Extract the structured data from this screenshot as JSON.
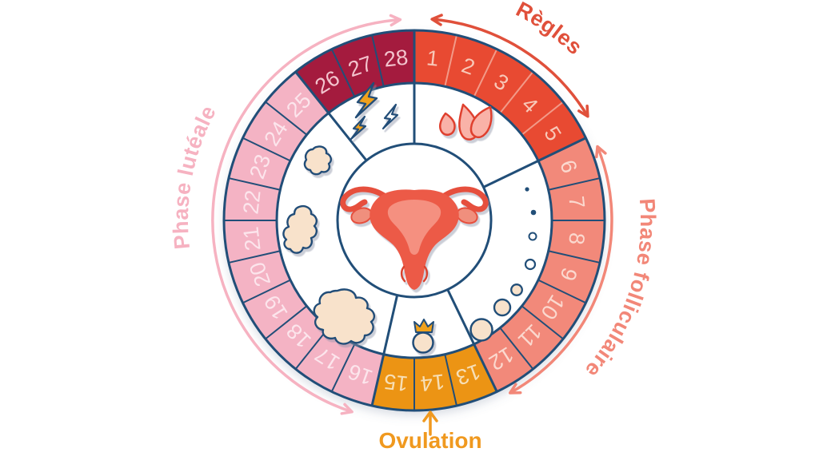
{
  "wheel": {
    "total_days": 28,
    "direction": "clockwise",
    "outline_color": "#214e78",
    "day_labels": [
      "1",
      "2",
      "3",
      "4",
      "5",
      "6",
      "7",
      "8",
      "9",
      "10",
      "11",
      "12",
      "13",
      "14",
      "15",
      "16",
      "17",
      "18",
      "19",
      "20",
      "21",
      "22",
      "23",
      "24",
      "25",
      "26",
      "27",
      "28"
    ],
    "phases": [
      {
        "id": "menstruation",
        "day_start": 1,
        "day_end": 5,
        "color": "#e84a32",
        "number_color": "#f8c8b8",
        "separator_color": "#f29a88"
      },
      {
        "id": "follicular",
        "day_start": 6,
        "day_end": 12,
        "color": "#f2897a",
        "number_color": "#fbd9cf",
        "separator_color": "#214e78"
      },
      {
        "id": "ovulation",
        "day_start": 13,
        "day_end": 15,
        "color": "#ec9414",
        "number_color": "#f7dfb6",
        "separator_color": "#214e78"
      },
      {
        "id": "luteal",
        "day_start": 16,
        "day_end": 25,
        "color": "#f4b3c4",
        "number_color": "#fce5ec",
        "separator_color": "#214e78"
      },
      {
        "id": "premenstrual",
        "day_start": 26,
        "day_end": 28,
        "color": "#a41b3e",
        "number_color": "#f3c4ce",
        "separator_color": "#214e78"
      }
    ]
  },
  "annotations": {
    "regles": {
      "text": "Règles",
      "color": "#e0503b"
    },
    "folliculaire": {
      "text": "Phase folliculaire",
      "color": "#f28778"
    },
    "luteale": {
      "text": "Phase lutéale",
      "color": "#f6b2c1"
    },
    "ovulation": {
      "text": "Ovulation",
      "color": "#f0991f"
    }
  },
  "icons": [
    {
      "name": "lightning-bolts-icon",
      "sector_days": "26-28"
    },
    {
      "name": "blood-drops-icon",
      "sector_days": "1-5"
    },
    {
      "name": "growing-follicles-icon",
      "sector_days": "6-12"
    },
    {
      "name": "crowned-egg-icon",
      "sector_days": "13-15"
    },
    {
      "name": "endometrium-blobs-icon",
      "sector_days": "16-25"
    },
    {
      "name": "uterus-icon",
      "sector_days": "center"
    }
  ]
}
